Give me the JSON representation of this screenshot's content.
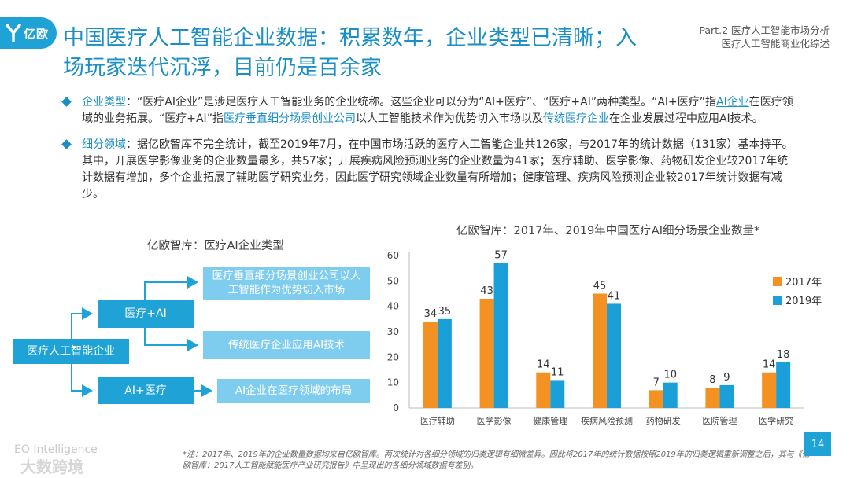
{
  "logo": {
    "text": "亿欧"
  },
  "title": "中国医疗人工智能企业数据：积累数年，企业类型已清晰；入场玩家迭代沉浮，目前仍是百余家",
  "part": {
    "line1": "Part.2  医疗人工智能市场分析",
    "line2": "医疗人工智能商业化综述"
  },
  "bullets": [
    {
      "segments": [
        {
          "t": "企业类型",
          "c": "kw"
        },
        {
          "t": "：“医疗AI企业”是涉足医疗人工智能业务的企业统称。这些企业可以分为“AI+医疗”、“医疗+AI”两种类型。“AI+医疗”指"
        },
        {
          "t": "AI企业",
          "c": "ul"
        },
        {
          "t": "在医疗领域的业务拓展。“医疗+AI”指"
        },
        {
          "t": "医疗垂直细分场景创业公司",
          "c": "ul"
        },
        {
          "t": "以人工智能技术作为优势切入市场以及"
        },
        {
          "t": "传统医疗企业",
          "c": "ul"
        },
        {
          "t": "在企业发展过程中应用AI技术。"
        }
      ]
    },
    {
      "segments": [
        {
          "t": "细分领域",
          "c": "kw"
        },
        {
          "t": "：据亿欧智库不完全统计，截至2019年7月，在中国市场活跃的医疗人工智能企业共126家，与2017年的统计数据（131家）基本持平。其中，开展医学影像业务的企业数量最多，共57家；开展疾病风险预测业务的企业数量为41家；医疗辅助、医学影像、药物研发企业较2017年统计数据有增加，多个企业拓展了辅助医学研究业务，因此医学研究领域企业数量有所增加；健康管理、疾病风险预测企业较2017年统计数据有减少。"
        }
      ]
    }
  ],
  "diagram": {
    "title": "亿欧智库：医疗AI企业类型",
    "root": "医疗人工智能企业",
    "branch1": "医疗+AI",
    "branch2": "AI+医疗",
    "leaf1": "医疗垂直细分场景创业公司以人工智能作为优势切入市场",
    "leaf2": "传统医疗企业应用AI技术",
    "leaf3": "AI企业在医疗领域的布局"
  },
  "chart_title": "亿欧智库：2017年、2019年中国医疗AI细分场景企业数量*",
  "chart_data": {
    "type": "bar",
    "title": "亿欧智库：2017年、2019年中国医疗AI细分场景企业数量*",
    "categories": [
      "医疗辅助",
      "医学影像",
      "健康管理",
      "疾病风险预测",
      "药物研发",
      "医院管理",
      "医学研究"
    ],
    "series": [
      {
        "name": "2017年",
        "values": [
          34,
          43,
          14,
          45,
          7,
          8,
          14
        ],
        "color": "#f39222"
      },
      {
        "name": "2019年",
        "values": [
          35,
          57,
          11,
          41,
          10,
          9,
          18
        ],
        "color": "#1a9fd9"
      }
    ],
    "ylim": [
      0,
      60
    ],
    "yticks": [
      0,
      10,
      20,
      30,
      40,
      50,
      60
    ],
    "legend": "right"
  },
  "footnote": "*注：2017年、2019年的企业数量数据均来自亿欧智库。两次统计对各细分领域的归类逻辑有细微差异。因此将2017年的统计数据按照2019年的归类逻辑重新调整之后，其与《亿欧智库：2017人工智能赋能医疗产业研究报告》中呈现出的各细分领域数据有差别。",
  "page_number": "14",
  "brand_text": "EO Intelligence",
  "watermark": "大数跨境"
}
